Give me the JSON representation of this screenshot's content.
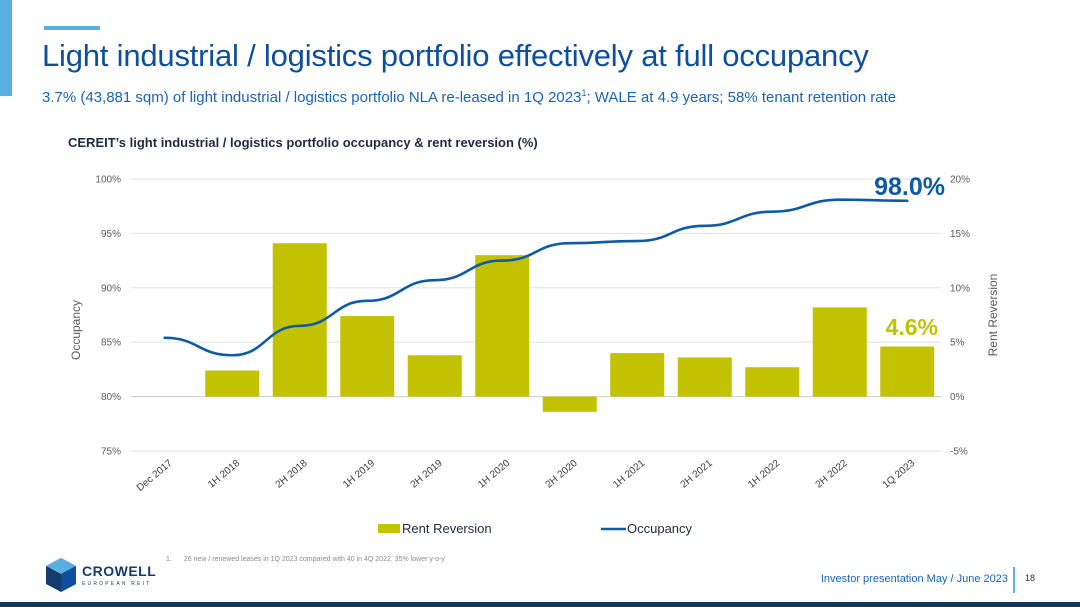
{
  "slide": {
    "title": "Light industrial / logistics portfolio effectively at full occupancy",
    "subtitle_main": "3.7% (43,881 sqm) of light industrial / logistics portfolio NLA re-leased in 1Q 2023",
    "subtitle_sup": "1",
    "subtitle_tail": "; WALE at 4.9 years; 58% tenant retention rate",
    "footnote_number": "1.",
    "footnote_text": "26 new / renewed leases in 1Q 2023 compared with 40 in 4Q 2022, 35% lower y-o-y",
    "footer_text": "Investor presentation May / June 2023",
    "page_number": "18"
  },
  "logo": {
    "name": "CROWELL",
    "tagline": "EUROPEAN REIT"
  },
  "colors": {
    "bar": "#c2c200",
    "line": "#0e5aa7",
    "accent": "#5aaee0",
    "title": "#0e4f9d",
    "footer_bar": "#13365f"
  },
  "chart_data": {
    "type": "bar",
    "title": "CEREIT’s light industrial / logistics portfolio occupancy & rent reversion (%)",
    "categories": [
      "Dec 2017",
      "1H 2018",
      "2H 2018",
      "1H 2019",
      "2H 2019",
      "1H 2020",
      "2H 2020",
      "1H 2021",
      "2H 2021",
      "1H 2022",
      "2H 2022",
      "1Q 2023"
    ],
    "series": [
      {
        "name": "Rent Reversion",
        "type": "bar",
        "axis": "right",
        "values": [
          null,
          2.4,
          14.1,
          7.4,
          3.8,
          13.0,
          -1.4,
          4.0,
          3.6,
          2.7,
          8.2,
          4.6
        ]
      },
      {
        "name": "Occupancy",
        "type": "line",
        "axis": "left",
        "values": [
          85.4,
          83.8,
          86.5,
          88.8,
          90.7,
          92.5,
          94.1,
          94.3,
          95.7,
          97.0,
          98.1,
          98.0
        ]
      }
    ],
    "ylabel": "Occupancy",
    "ylabel_right": "Rent Reversion",
    "ylim": [
      75,
      100
    ],
    "ylim_right": [
      -5,
      20
    ],
    "yticks": [
      75,
      80,
      85,
      90,
      95,
      100
    ],
    "yticks_right": [
      -5,
      0,
      5,
      10,
      15,
      20
    ],
    "ytick_labels": [
      "75%",
      "80%",
      "85%",
      "90%",
      "95%",
      "100%"
    ],
    "ytick_labels_right": [
      "-5%",
      "0%",
      "5%",
      "10%",
      "15%",
      "20%"
    ],
    "grid": true,
    "legend_position": "bottom",
    "annotations": [
      {
        "text": "98.0%",
        "series": "Occupancy",
        "category": "1Q 2023"
      },
      {
        "text": "4.6%",
        "series": "Rent Reversion",
        "category": "1Q 2023"
      }
    ]
  }
}
